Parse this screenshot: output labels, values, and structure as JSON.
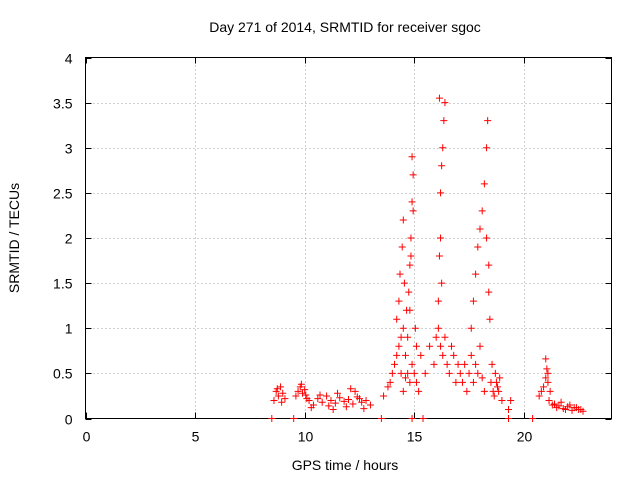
{
  "chart_data": {
    "type": "scatter",
    "title": "Day 271 of 2014, SRMTID for receiver sgoc",
    "xlabel": "GPS time / hours",
    "ylabel": "SRMTID / TECUs",
    "xlim": [
      0,
      24
    ],
    "ylim": [
      0,
      4
    ],
    "xticks": [
      0,
      5,
      10,
      15,
      20
    ],
    "xtick_labels": [
      "0",
      "5",
      "10",
      "15",
      "20"
    ],
    "yticks": [
      0,
      0.5,
      1,
      1.5,
      2,
      2.5,
      3,
      3.5,
      4
    ],
    "ytick_labels": [
      "0",
      "0.5",
      "1",
      "1.5",
      "2",
      "2.5",
      "3",
      "3.5",
      "4"
    ],
    "grid": true,
    "marker": "+",
    "series": [
      {
        "name": "SRMTID",
        "color": "#ff0000",
        "x": [
          8.5,
          9.5,
          13.5,
          14.9,
          15.4,
          19.3,
          20.4,
          8.6,
          8.7,
          8.8,
          8.9,
          9.0,
          9.1,
          8.75,
          8.95,
          9.6,
          9.7,
          9.8,
          9.9,
          10.0,
          10.1,
          9.85,
          10.05,
          10.2,
          10.4,
          10.6,
          10.8,
          11.0,
          11.2,
          11.4,
          11.6,
          11.8,
          12.0,
          12.2,
          12.4,
          12.6,
          12.8,
          13.0,
          10.3,
          10.7,
          11.1,
          11.5,
          11.9,
          12.3,
          12.7,
          12.1,
          12.5,
          11.3,
          13.6,
          13.8,
          13.9,
          14.0,
          14.1,
          14.2,
          14.3,
          14.4,
          14.5,
          14.6,
          14.7,
          14.8,
          14.9,
          15.0,
          15.1,
          15.2,
          14.2,
          14.3,
          14.35,
          14.45,
          14.5,
          14.55,
          14.65,
          14.75,
          14.8,
          14.85,
          14.9,
          14.95,
          15.05,
          15.1,
          14.4,
          14.5,
          14.6,
          14.7,
          14.8,
          14.85,
          14.9,
          14.95,
          15.3,
          15.5,
          15.7,
          15.9,
          16.0,
          16.1,
          16.2,
          16.3,
          16.4,
          16.5,
          16.6,
          16.7,
          16.8,
          16.9,
          17.0,
          16.1,
          16.15,
          16.2,
          16.2,
          16.25,
          16.3,
          16.35,
          16.4,
          16.15,
          16.25,
          17.1,
          17.2,
          17.3,
          17.4,
          17.5,
          17.6,
          17.7,
          17.8,
          17.9,
          18.0,
          18.1,
          18.2,
          17.6,
          17.7,
          17.8,
          17.9,
          18.0,
          18.1,
          18.2,
          18.3,
          18.4,
          18.3,
          18.35,
          18.4,
          18.45,
          18.5,
          18.6,
          18.7,
          18.8,
          18.9,
          19.0,
          18.55,
          18.65,
          18.75,
          18.85,
          19.3,
          19.4,
          20.7,
          20.8,
          20.9,
          21.0,
          21.1,
          21.2,
          21.0,
          21.05,
          21.1,
          21.15,
          21.3,
          21.5,
          21.7,
          21.9,
          22.1,
          22.3,
          22.5,
          22.7,
          21.4,
          21.6,
          21.8,
          22.0,
          22.2,
          22.4,
          22.6
        ],
        "y": [
          0,
          0,
          0,
          0,
          0,
          0,
          0,
          0.2,
          0.3,
          0.25,
          0.35,
          0.28,
          0.22,
          0.33,
          0.18,
          0.25,
          0.3,
          0.35,
          0.28,
          0.32,
          0.22,
          0.38,
          0.26,
          0.2,
          0.15,
          0.22,
          0.18,
          0.25,
          0.2,
          0.17,
          0.23,
          0.19,
          0.21,
          0.16,
          0.24,
          0.18,
          0.2,
          0.15,
          0.12,
          0.26,
          0.14,
          0.28,
          0.13,
          0.3,
          0.11,
          0.33,
          0.22,
          0.1,
          0.25,
          0.35,
          0.4,
          0.5,
          0.6,
          0.7,
          0.8,
          0.9,
          1.0,
          0.7,
          0.5,
          0.4,
          0.6,
          0.5,
          0.4,
          0.3,
          1.1,
          1.3,
          1.6,
          1.9,
          2.2,
          1.5,
          1.2,
          1.4,
          1.7,
          2.0,
          2.4,
          2.7,
          1.0,
          0.8,
          0.5,
          0.3,
          0.45,
          0.9,
          1.2,
          1.8,
          2.9,
          2.3,
          0.7,
          0.5,
          0.8,
          0.6,
          0.9,
          1.0,
          0.8,
          0.7,
          0.9,
          0.6,
          0.5,
          0.8,
          0.7,
          0.4,
          0.6,
          1.3,
          1.8,
          2.0,
          2.5,
          2.8,
          3.0,
          3.3,
          3.5,
          3.55,
          1.5,
          0.5,
          0.4,
          0.6,
          0.3,
          0.5,
          0.7,
          0.4,
          0.6,
          0.5,
          0.8,
          0.45,
          0.3,
          1.0,
          1.3,
          1.6,
          1.9,
          2.1,
          2.3,
          2.6,
          2.0,
          1.7,
          3.0,
          3.3,
          1.4,
          1.1,
          0.4,
          0.3,
          0.5,
          0.35,
          0.45,
          0.2,
          0.6,
          0.25,
          0.4,
          0.3,
          0.1,
          0.2,
          0.25,
          0.3,
          0.35,
          0.45,
          0.5,
          0.3,
          0.66,
          0.55,
          0.4,
          0.2,
          0.15,
          0.12,
          0.18,
          0.1,
          0.15,
          0.12,
          0.1,
          0.08,
          0.16,
          0.14,
          0.11,
          0.13,
          0.09,
          0.12,
          0.1
        ]
      }
    ]
  }
}
